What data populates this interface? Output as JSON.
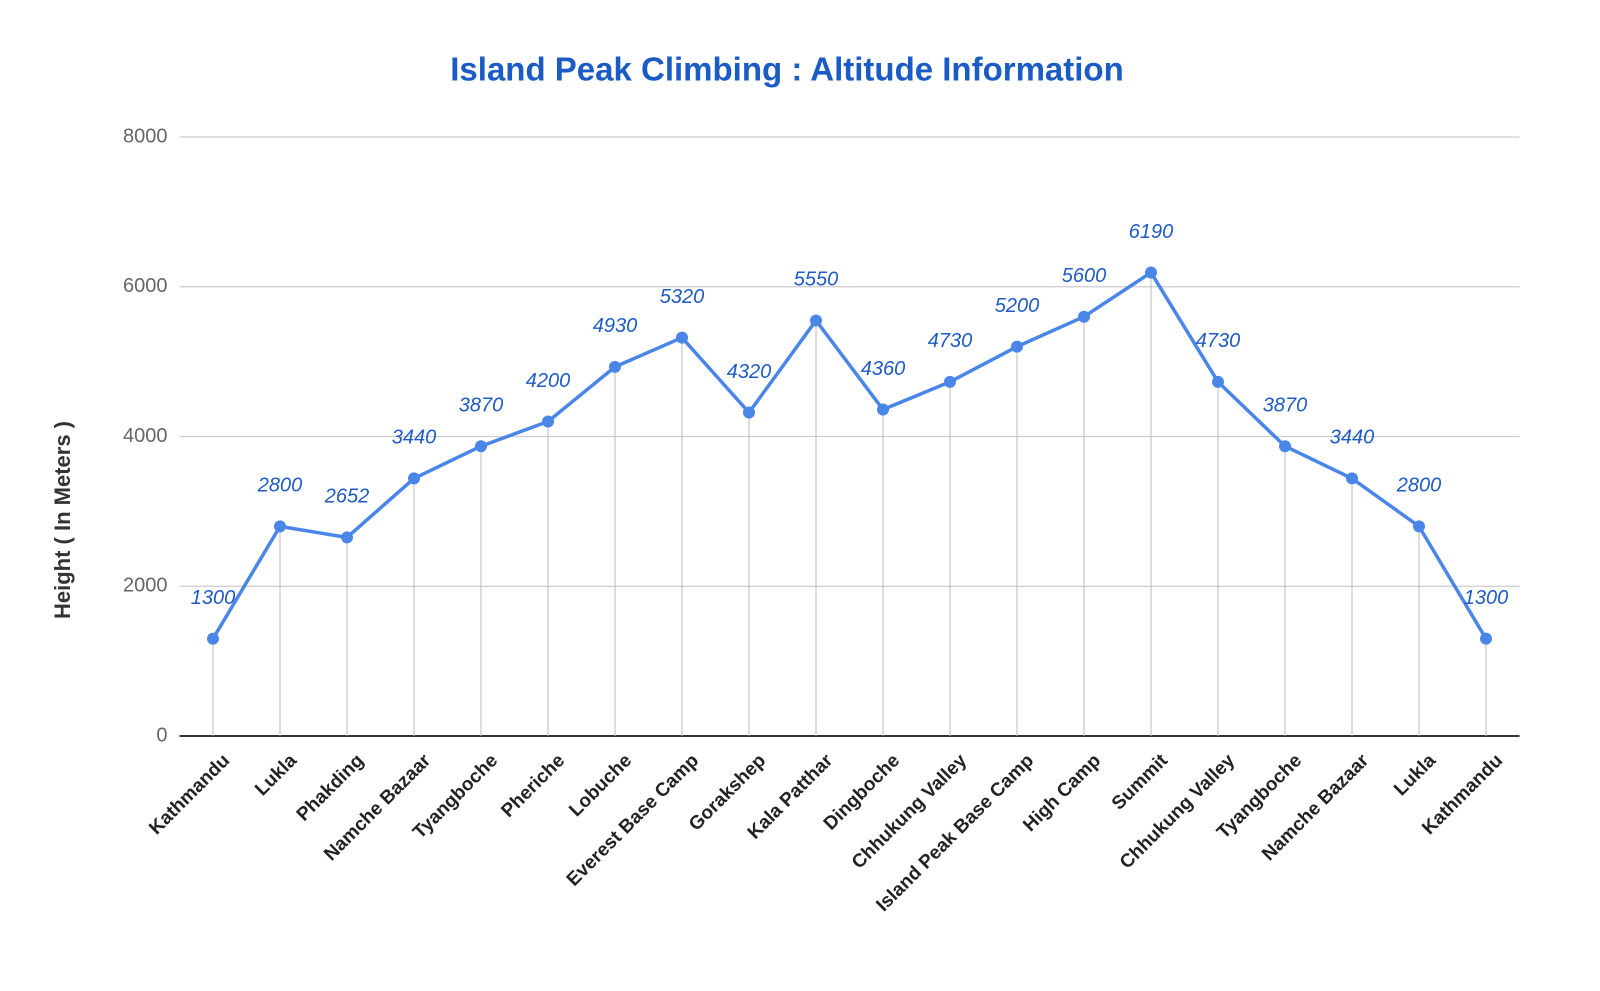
{
  "chart_data": {
    "type": "line",
    "title": "Island Peak Climbing : Altitude Information",
    "y_label": "Height ( In Meters )",
    "categories": [
      "Kathmandu",
      "Lukla",
      "Phakding",
      "Namche Bazaar",
      "Tyangboche",
      "Pheriche",
      "Lobuche",
      "Everest Base Camp",
      "Gorakshep",
      "Kala Patthar",
      "Dingboche",
      "Chhukung Valley",
      "Island Peak Base Camp",
      "High Camp",
      "Summit",
      "Chhukung Valley",
      "Tyangboche",
      "Namche Bazaar",
      "Lukla",
      "Kathmandu"
    ],
    "values": [
      1300,
      2800,
      2652,
      3440,
      3870,
      4200,
      4930,
      5320,
      4320,
      5550,
      4360,
      4730,
      5200,
      5600,
      6190,
      4730,
      3870,
      3440,
      2800,
      1300
    ],
    "color": "#4a86e8",
    "ylim": [
      0,
      8000
    ],
    "yticks": [
      0,
      2000,
      4000,
      6000,
      8000
    ],
    "grid": true
  }
}
